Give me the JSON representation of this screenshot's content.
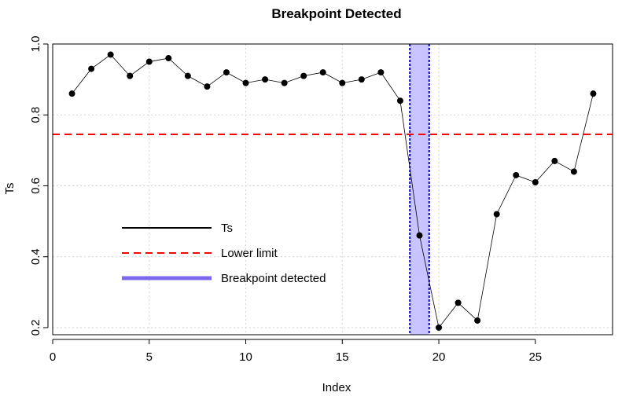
{
  "chart_data": {
    "type": "line",
    "title": "Breakpoint Detected",
    "xlabel": "Index",
    "ylabel": "Ts",
    "xlim": [
      0,
      29
    ],
    "ylim": [
      0.18,
      1.0
    ],
    "x_ticks": [
      0,
      5,
      10,
      15,
      20,
      25
    ],
    "y_ticks": [
      0.2,
      0.4,
      0.6,
      0.8,
      1.0
    ],
    "x_tick_labels": [
      "0",
      "5",
      "10",
      "15",
      "20",
      "25"
    ],
    "y_tick_labels": [
      "0.2",
      "0.4",
      "0.6",
      "0.8",
      "1.0"
    ],
    "grid": true,
    "series": [
      {
        "name": "Ts",
        "x": [
          1,
          2,
          3,
          4,
          5,
          6,
          7,
          8,
          9,
          10,
          11,
          12,
          13,
          14,
          15,
          16,
          17,
          18,
          19,
          20,
          21,
          22,
          23,
          24,
          25,
          26,
          27,
          28
        ],
        "values": [
          0.86,
          0.93,
          0.97,
          0.91,
          0.95,
          0.96,
          0.91,
          0.88,
          0.92,
          0.89,
          0.9,
          0.89,
          0.91,
          0.92,
          0.89,
          0.9,
          0.92,
          0.84,
          0.46,
          0.2,
          0.27,
          0.22,
          0.52,
          0.63,
          0.61,
          0.67,
          0.64,
          0.86
        ],
        "color": "#000000"
      }
    ],
    "lower_limit": {
      "name": "Lower limit",
      "value": 0.745,
      "color": "#ff0000"
    },
    "breakpoint": {
      "name": "Breakpoint detected",
      "x_start": 18.5,
      "x_end": 19.5,
      "fill": "#c8c4ff",
      "border": "#0000cc"
    },
    "legend": {
      "position": "bottom-left",
      "entries": [
        {
          "label": "Ts",
          "color": "#000000",
          "style": "solid"
        },
        {
          "label": "Lower limit",
          "color": "#ff0000",
          "style": "dashed"
        },
        {
          "label": "Breakpoint detected",
          "color": "#7b68ee",
          "style": "thick"
        }
      ]
    }
  }
}
